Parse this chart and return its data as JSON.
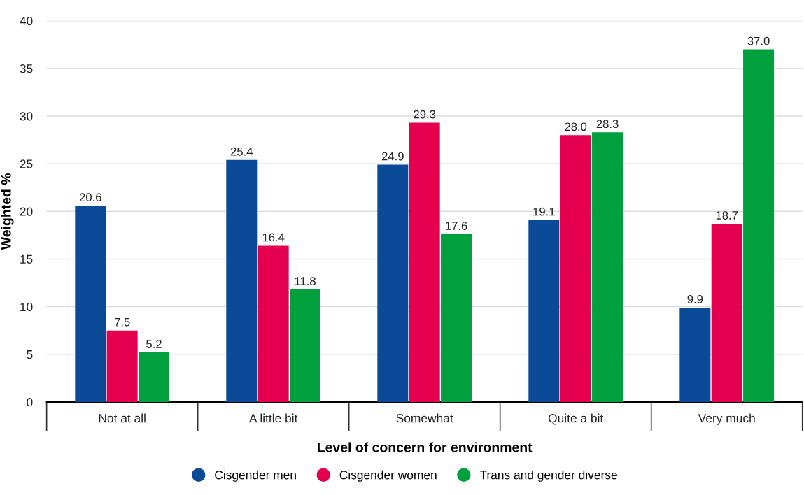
{
  "chart_data": {
    "type": "bar",
    "categories": [
      "Not at all",
      "A little bit",
      "Somewhat",
      "Quite a bit",
      "Very much"
    ],
    "series": [
      {
        "name": "Cisgender men",
        "color": "#0a4a97",
        "values": [
          20.6,
          25.4,
          24.9,
          19.1,
          9.9
        ],
        "value_labels": [
          "20.6",
          "25.4",
          "24.9",
          "19.1",
          "9.9"
        ]
      },
      {
        "name": "Cisgender women",
        "color": "#e4004f",
        "values": [
          7.5,
          16.4,
          29.3,
          28.0,
          18.7
        ],
        "value_labels": [
          "7.5",
          "16.4",
          "29.3",
          "28.0",
          "18.7"
        ]
      },
      {
        "name": "Trans and gender diverse",
        "color": "#00a03c",
        "values": [
          5.2,
          11.8,
          17.6,
          28.3,
          37.0
        ],
        "value_labels": [
          "5.2",
          "11.8",
          "17.6",
          "28.3",
          "37.0"
        ]
      }
    ],
    "xlabel": "Level of concern for environment",
    "ylabel": "Weighted %",
    "ylim": [
      0,
      40
    ],
    "yticks": [
      0,
      5,
      10,
      15,
      20,
      25,
      30,
      35,
      40
    ],
    "grid": "y",
    "legend": "bottom",
    "marker": "circle"
  }
}
